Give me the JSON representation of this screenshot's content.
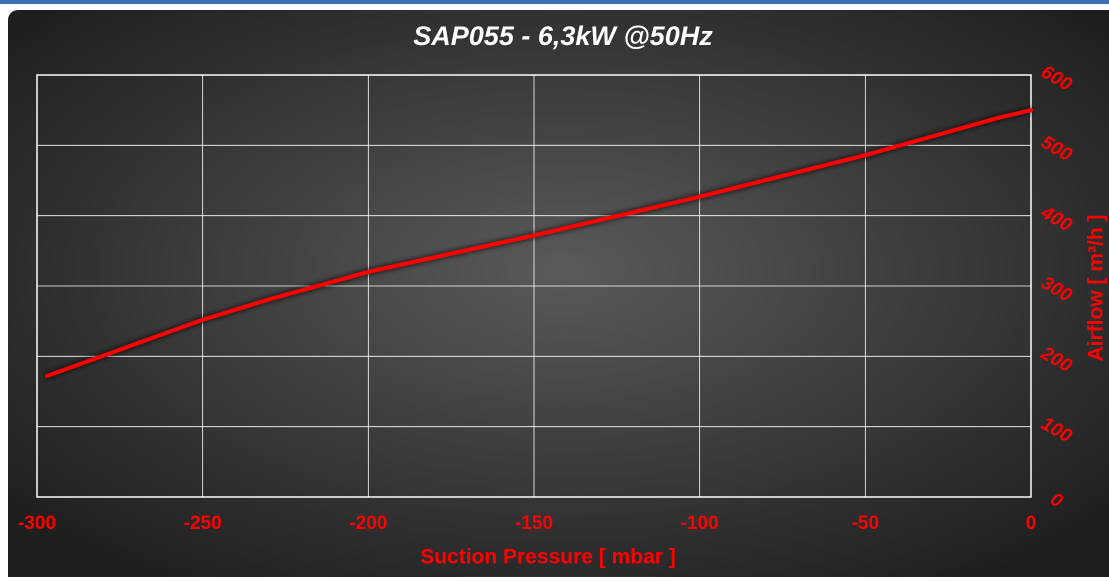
{
  "chart_data": {
    "type": "line",
    "title": "SAP055 - 6,3kW @50Hz",
    "x_label": "Suction Pressure [ mbar ]",
    "y_label": "Airflow [ m³/h ]",
    "x": [
      -297,
      -250,
      -230,
      -200,
      -150,
      -100,
      -50,
      -10,
      0
    ],
    "values": [
      172,
      252,
      281,
      320,
      372,
      427,
      486,
      539,
      550
    ],
    "color": "#ff0000",
    "xlim": [
      -300,
      0
    ],
    "xticks": [
      -300,
      -250,
      -200,
      -150,
      -100,
      -50,
      0
    ],
    "ylim": [
      0,
      600
    ],
    "yticks": [
      0,
      100,
      200,
      300,
      400,
      500,
      600
    ],
    "y_axis_position": "right",
    "grid": true
  }
}
